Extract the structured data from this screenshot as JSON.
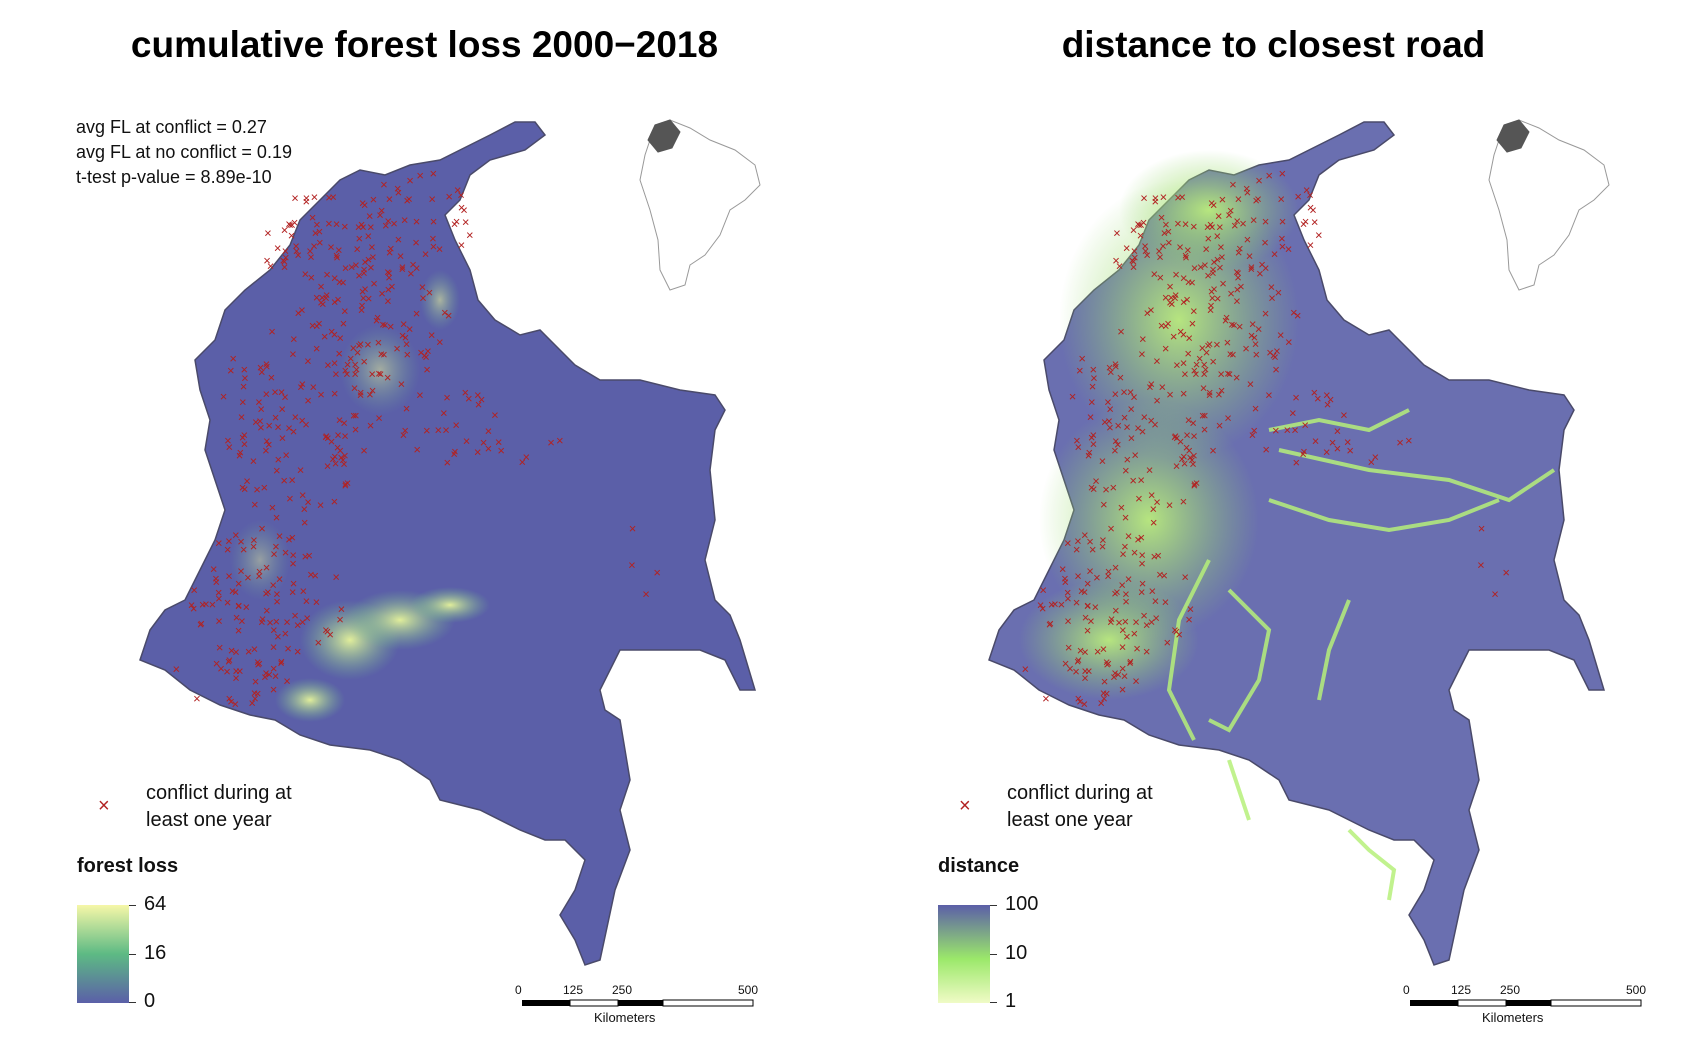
{
  "panels": [
    {
      "title": "cumulative forest loss 2000−2018",
      "stats": [
        "avg FL at conflict = 0.27",
        "avg FL at no conflict = 0.19",
        "t-test p-value = 8.89e-10"
      ],
      "marker_legend": {
        "symbol": "×",
        "label_line1": "conflict during at",
        "label_line2": "least one year"
      },
      "colorbar": {
        "title": "forest loss",
        "ticks": [
          "64",
          "16",
          "0"
        ],
        "colors_top_to_bottom": [
          "#f6f7a8",
          "#5dba84",
          "#5b5fa8"
        ]
      },
      "map_fill": "#5b5fa8",
      "highlight_color": "#d8f08a",
      "scale_bar": {
        "labels": [
          "0",
          "125",
          "250",
          "500"
        ],
        "unit": "Kilometers"
      }
    },
    {
      "title": "distance to closest road",
      "stats": [],
      "marker_legend": {
        "symbol": "×",
        "label_line1": "conflict during at",
        "label_line2": "least one year"
      },
      "colorbar": {
        "title": "distance",
        "ticks": [
          "100",
          "10",
          "1"
        ],
        "colors_top_to_bottom": [
          "#5b5fa8",
          "#9be86a",
          "#f0fbc6"
        ]
      },
      "map_fill": "#6a6fb0",
      "highlight_color": "#b6f07a",
      "scale_bar": {
        "labels": [
          "0",
          "125",
          "250",
          "500"
        ],
        "unit": "Kilometers"
      }
    }
  ],
  "marker_color": "#b22222",
  "inset_map": {
    "country_fill": "#555555",
    "continent_stroke": "#999999"
  }
}
